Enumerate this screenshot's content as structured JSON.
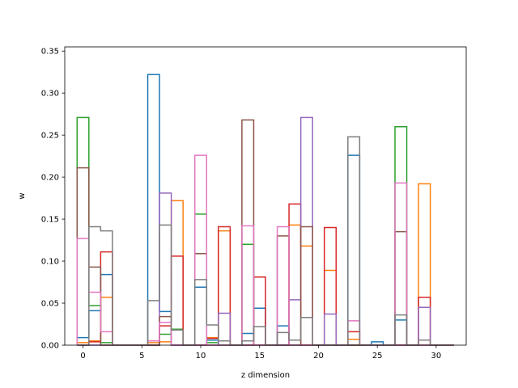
{
  "chart_data": {
    "type": "step",
    "xlabel": "z dimension",
    "ylabel": "w",
    "xlim": [
      -1.55,
      32.55
    ],
    "ylim": [
      0,
      0.355
    ],
    "xticks": [
      0,
      5,
      10,
      15,
      20,
      25,
      30
    ],
    "yticks": [
      0.0,
      0.05,
      0.1,
      0.15,
      0.2,
      0.25,
      0.3,
      0.35
    ],
    "x": [
      0,
      1,
      2,
      3,
      4,
      5,
      6,
      7,
      8,
      9,
      10,
      11,
      12,
      13,
      14,
      15,
      16,
      17,
      18,
      19,
      20,
      21,
      22,
      23,
      24,
      25,
      26,
      27,
      28,
      29,
      30,
      31
    ],
    "series": [
      {
        "color": "#1f77b4",
        "values": [
          0.009,
          0.041,
          0.084,
          0.0,
          0.0,
          0.0,
          0.322,
          0.04,
          0.0,
          0.0,
          0.069,
          0.006,
          0.0,
          0.0,
          0.014,
          0.044,
          0.0,
          0.023,
          0.0,
          0.0,
          0.0,
          0.0,
          0.0,
          0.226,
          0.0,
          0.004,
          0.0,
          0.03,
          0.0,
          0.0,
          0.0,
          0.0
        ]
      },
      {
        "color": "#ff7f0e",
        "values": [
          0.003,
          0.005,
          0.057,
          0.0,
          0.0,
          0.0,
          0.003,
          0.004,
          0.172,
          0.0,
          0.0,
          0.009,
          0.136,
          0.0,
          0.0,
          0.0,
          0.0,
          0.0,
          0.143,
          0.118,
          0.0,
          0.089,
          0.0,
          0.007,
          0.0,
          0.0,
          0.0,
          0.0,
          0.0,
          0.192,
          0.0,
          0.0
        ]
      },
      {
        "color": "#2ca02c",
        "values": [
          0.271,
          0.047,
          0.003,
          0.0,
          0.0,
          0.0,
          0.0,
          0.013,
          0.019,
          0.0,
          0.156,
          0.003,
          0.0,
          0.0,
          0.12,
          0.0,
          0.0,
          0.0,
          0.0,
          0.0,
          0.0,
          0.0,
          0.0,
          0.0,
          0.0,
          0.0,
          0.0,
          0.26,
          0.0,
          0.0,
          0.0,
          0.0
        ]
      },
      {
        "color": "#d62728",
        "values": [
          0.0,
          0.004,
          0.111,
          0.0,
          0.0,
          0.0,
          0.0,
          0.023,
          0.106,
          0.0,
          0.0,
          0.008,
          0.141,
          0.0,
          0.0,
          0.081,
          0.0,
          0.0,
          0.168,
          0.0,
          0.0,
          0.14,
          0.0,
          0.016,
          0.0,
          0.0,
          0.0,
          0.0,
          0.0,
          0.057,
          0.0,
          0.0
        ]
      },
      {
        "color": "#9467bd",
        "values": [
          0.0,
          0.0,
          0.0,
          0.0,
          0.0,
          0.0,
          0.0,
          0.181,
          0.0,
          0.0,
          0.0,
          0.0,
          0.038,
          0.0,
          0.0,
          0.0,
          0.0,
          0.0,
          0.054,
          0.271,
          0.0,
          0.037,
          0.0,
          0.0,
          0.0,
          0.0,
          0.0,
          0.0,
          0.0,
          0.045,
          0.0,
          0.0
        ]
      },
      {
        "color": "#8c564b",
        "values": [
          0.211,
          0.093,
          0.0,
          0.0,
          0.0,
          0.0,
          0.0,
          0.034,
          0.0,
          0.0,
          0.109,
          0.0,
          0.0,
          0.0,
          0.268,
          0.0,
          0.0,
          0.13,
          0.0,
          0.141,
          0.0,
          0.0,
          0.0,
          0.0,
          0.0,
          0.0,
          0.0,
          0.135,
          0.0,
          0.0,
          0.0,
          0.0
        ]
      },
      {
        "color": "#e377c2",
        "values": [
          0.127,
          0.063,
          0.016,
          0.0,
          0.0,
          0.0,
          0.005,
          0.027,
          0.0,
          0.0,
          0.226,
          0.0,
          0.0,
          0.0,
          0.142,
          0.0,
          0.0,
          0.141,
          0.0,
          0.0,
          0.0,
          0.0,
          0.0,
          0.029,
          0.0,
          0.0,
          0.0,
          0.193,
          0.0,
          0.0,
          0.0,
          0.0
        ]
      },
      {
        "color": "#7f7f7f",
        "values": [
          0.0,
          0.141,
          0.136,
          0.0,
          0.0,
          0.0,
          0.053,
          0.143,
          0.018,
          0.0,
          0.078,
          0.024,
          0.005,
          0.0,
          0.005,
          0.022,
          0.0,
          0.015,
          0.006,
          0.033,
          0.0,
          0.0,
          0.0,
          0.248,
          0.0,
          0.0,
          0.0,
          0.036,
          0.0,
          0.006,
          0.0,
          0.0
        ]
      }
    ]
  }
}
